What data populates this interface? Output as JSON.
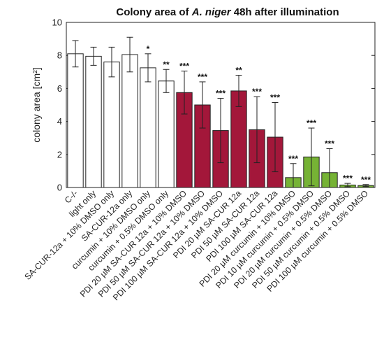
{
  "chart_data": {
    "type": "bar",
    "title_prefix": "Colony area of ",
    "title_species": "A. niger",
    "title_suffix": " 48h after illumination",
    "ylabel": "colony area [cm²]",
    "xlabel": "",
    "ylim": [
      0,
      10
    ],
    "yticks": [
      0,
      2,
      4,
      6,
      8,
      10
    ],
    "colors": {
      "white": "#ffffff",
      "red": "#a3173a",
      "green": "#76b335",
      "edge": "#222222"
    },
    "bars": [
      {
        "category": "C-/-",
        "value": 8.1,
        "error": 0.8,
        "sig": "",
        "color": "white"
      },
      {
        "category": "light only",
        "value": 7.95,
        "error": 0.55,
        "sig": "",
        "color": "white"
      },
      {
        "category": "SA-CUR-12a + 10% DMSO only",
        "value": 7.6,
        "error": 0.9,
        "sig": "",
        "color": "white"
      },
      {
        "category": "SA-CUR-12a only",
        "value": 8.05,
        "error": 1.05,
        "sig": "",
        "color": "white"
      },
      {
        "category": "curcumin + 10% DMSO only",
        "value": 7.25,
        "error": 0.85,
        "sig": "*",
        "color": "white"
      },
      {
        "category": "curcumin + 0.5% DMSO only",
        "value": 6.45,
        "error": 0.7,
        "sig": "**",
        "color": "white"
      },
      {
        "category": "PDI 20 µM SA-CUR 12a + 10% DMSO",
        "value": 5.75,
        "error": 1.3,
        "sig": "***",
        "color": "red"
      },
      {
        "category": "PDI 50 µM SA-CUR 12a + 10% DMSO",
        "value": 5.0,
        "error": 1.4,
        "sig": "***",
        "color": "red"
      },
      {
        "category": "PDI 100 µM SA-CUR 12a + 10% DMSO",
        "value": 3.45,
        "error": 1.95,
        "sig": "***",
        "color": "red"
      },
      {
        "category": "PDI 20 µM SA-CUR 12a",
        "value": 5.85,
        "error": 0.95,
        "sig": "**",
        "color": "red"
      },
      {
        "category": "PDI 50 µM SA-CUR 12a",
        "value": 3.5,
        "error": 2.0,
        "sig": "***",
        "color": "red"
      },
      {
        "category": "PDI 100 µM SA-CUR 12a",
        "value": 3.05,
        "error": 2.1,
        "sig": "***",
        "color": "red"
      },
      {
        "category": "PDI 20 µM curcumin + 10% DMSO",
        "value": 0.6,
        "error": 0.85,
        "sig": "***",
        "color": "green"
      },
      {
        "category": "PDI 10 µM curcumin + 0.5% DMSO",
        "value": 1.85,
        "error": 1.75,
        "sig": "***",
        "color": "green"
      },
      {
        "category": "PDI 20 µM curcumin + 0.5% DMSO",
        "value": 0.9,
        "error": 1.45,
        "sig": "***",
        "color": "green"
      },
      {
        "category": "PDI 50 µM curcumin + 0.5% DMSO",
        "value": 0.15,
        "error": 0.1,
        "sig": "***",
        "color": "green"
      },
      {
        "category": "PDI 100 µM curcumin + 0.5% DMSO",
        "value": 0.12,
        "error": 0.06,
        "sig": "***",
        "color": "green"
      }
    ]
  }
}
